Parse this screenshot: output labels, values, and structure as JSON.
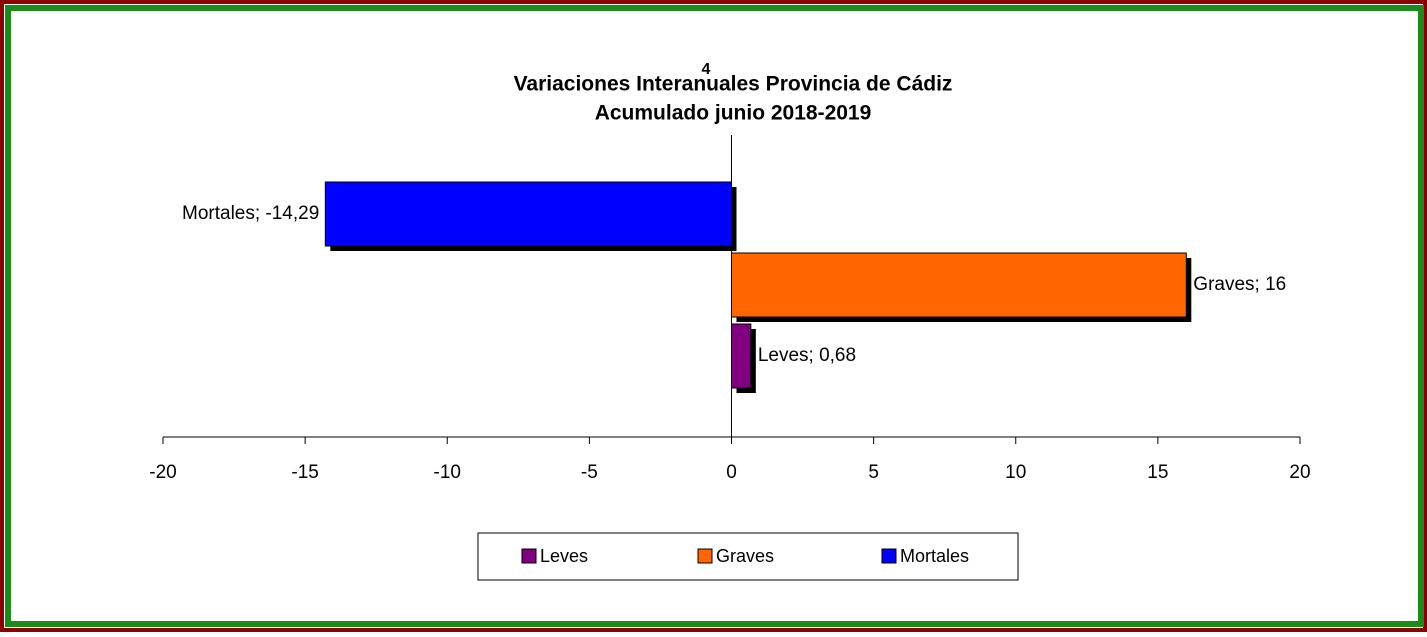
{
  "chart_data": {
    "type": "bar",
    "orientation": "horizontal",
    "title": "Variaciones Interanuales Provincia de Cádiz",
    "subtitle": "Acumulado  junio 2018-2019",
    "annotation": "4",
    "series": [
      {
        "name": "Leves",
        "color": "#800080",
        "values": [
          0.68
        ],
        "value_labels": [
          "Leves; 0,68"
        ]
      },
      {
        "name": "Graves",
        "color": "#ff6600",
        "values": [
          16
        ],
        "value_labels": [
          "Graves; 16"
        ]
      },
      {
        "name": "Mortales",
        "color": "#0000ff",
        "values": [
          -14.29
        ],
        "value_labels": [
          "Mortales; -14,29"
        ]
      }
    ],
    "xlim": [
      -20,
      20
    ],
    "xticks": [
      -20,
      -15,
      -10,
      -5,
      0,
      5,
      10,
      15,
      20
    ],
    "grid": false,
    "legend": "bottom"
  }
}
